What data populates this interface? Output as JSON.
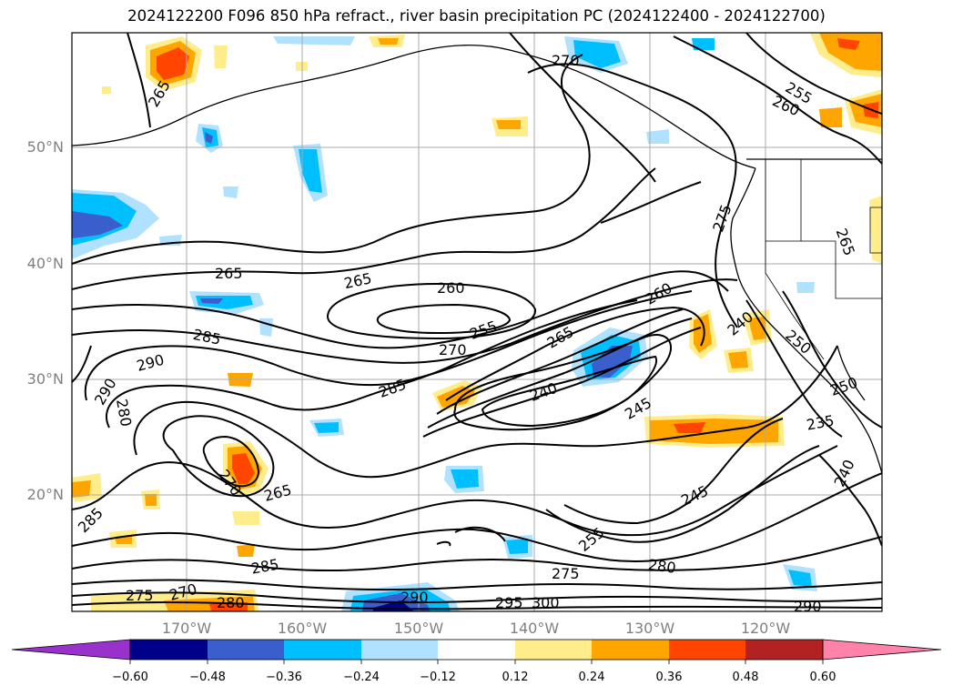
{
  "title": "2024122200 F096 850 hPa refract., river basin precipitation PC (2024122400 - 2024122700)",
  "lat_labels": [
    "50°N",
    "40°N",
    "30°N",
    "20°N"
  ],
  "lon_labels": [
    "170°W",
    "160°W",
    "150°W",
    "140°W",
    "130°W",
    "120°W"
  ],
  "contour_labels": [
    "265",
    "270",
    "255",
    "260",
    "275",
    "265",
    "260",
    "255",
    "270",
    "265",
    "260",
    "285",
    "290",
    "290",
    "280",
    "285",
    "285",
    "240",
    "245",
    "265",
    "270",
    "265",
    "285",
    "275",
    "270",
    "280",
    "290",
    "295",
    "300",
    "275",
    "280",
    "245",
    "255",
    "240",
    "250",
    "235",
    "240",
    "250",
    "265",
    "290"
  ],
  "colorbar": {
    "ticks": [
      "−0.60",
      "−0.48",
      "−0.36",
      "−0.24",
      "−0.12",
      "0.12",
      "0.24",
      "0.36",
      "0.48",
      "0.60"
    ],
    "colors": [
      "#9932cc",
      "#00008b",
      "#3a5fcd",
      "#00bfff",
      "#b0e2ff",
      "#ffffff",
      "#ffec8b",
      "#ffa500",
      "#ff4500",
      "#b22222",
      "#ff82ab"
    ]
  }
}
